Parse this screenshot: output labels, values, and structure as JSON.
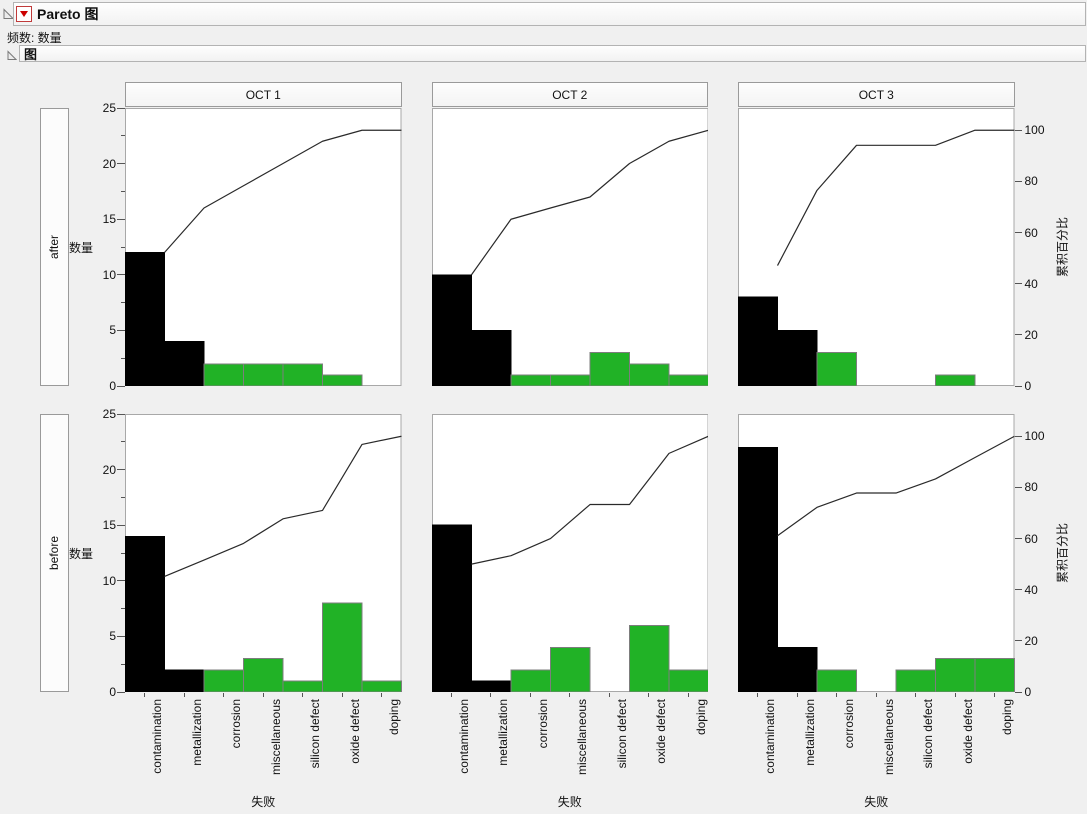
{
  "report": {
    "title": "Pareto 图",
    "frequency_line": "频数: 数量",
    "section_title": "图"
  },
  "colors": {
    "bar_black": "#000000",
    "bar_green": "#21b226",
    "bar_outline": "#7d7d7d",
    "cumulative_line": "#2a2a2a",
    "frame_border": "#a8a8a8",
    "tick": "#555555"
  },
  "chart_data": {
    "type": "bar",
    "subtype": "pareto-grid",
    "categories": [
      "contamination",
      "metallization",
      "corrosion",
      "miscellaneous",
      "silicon defect",
      "oxide defect",
      "doping"
    ],
    "col_headers": [
      "OCT 1",
      "OCT 2",
      "OCT 3"
    ],
    "row_headers": [
      "after",
      "before"
    ],
    "xlabel": "失败",
    "ylabel_left": "数量",
    "ylabel_right": "累积百分比",
    "ylim_left": [
      0,
      25
    ],
    "ylim_right": [
      0,
      100
    ],
    "left_ticks": [
      0,
      5,
      10,
      15,
      20,
      25
    ],
    "left_minor_ticks": [
      2.5,
      7.5,
      12.5,
      17.5,
      22.5
    ],
    "right_ticks": [
      0,
      20,
      40,
      60,
      80,
      100
    ],
    "percent_100_at_count": 23,
    "black_category_count": 2,
    "cells": [
      {
        "row": "after",
        "col": "OCT 1",
        "total": 23,
        "values": [
          12,
          4,
          2,
          2,
          2,
          1,
          0
        ],
        "cumulative_percent": [
          52.2,
          69.6,
          78.3,
          87.0,
          95.7,
          100,
          100
        ]
      },
      {
        "row": "after",
        "col": "OCT 2",
        "total": 23,
        "values": [
          10,
          5,
          1,
          1,
          3,
          2,
          1
        ],
        "cumulative_percent": [
          43.5,
          65.2,
          69.6,
          73.9,
          87.0,
          95.7,
          100
        ]
      },
      {
        "row": "after",
        "col": "OCT 3",
        "total": 17,
        "values": [
          8,
          5,
          3,
          0,
          0,
          1,
          0
        ],
        "cumulative_percent": [
          47.1,
          76.5,
          94.1,
          94.1,
          94.1,
          100,
          100
        ]
      },
      {
        "row": "before",
        "col": "OCT 1",
        "total": 31,
        "values": [
          14,
          2,
          2,
          3,
          1,
          8,
          1
        ],
        "cumulative_percent": [
          45.2,
          51.6,
          58.1,
          67.7,
          71.0,
          96.8,
          100
        ]
      },
      {
        "row": "before",
        "col": "OCT 2",
        "total": 30,
        "values": [
          15,
          1,
          2,
          4,
          0,
          6,
          2
        ],
        "cumulative_percent": [
          50.0,
          53.3,
          60.0,
          73.3,
          73.3,
          93.3,
          100
        ]
      },
      {
        "row": "before",
        "col": "OCT 3",
        "total": 36,
        "values": [
          22,
          4,
          2,
          0,
          2,
          3,
          3
        ],
        "cumulative_percent": [
          61.1,
          72.2,
          77.8,
          77.8,
          83.3,
          91.7,
          100
        ]
      }
    ]
  }
}
